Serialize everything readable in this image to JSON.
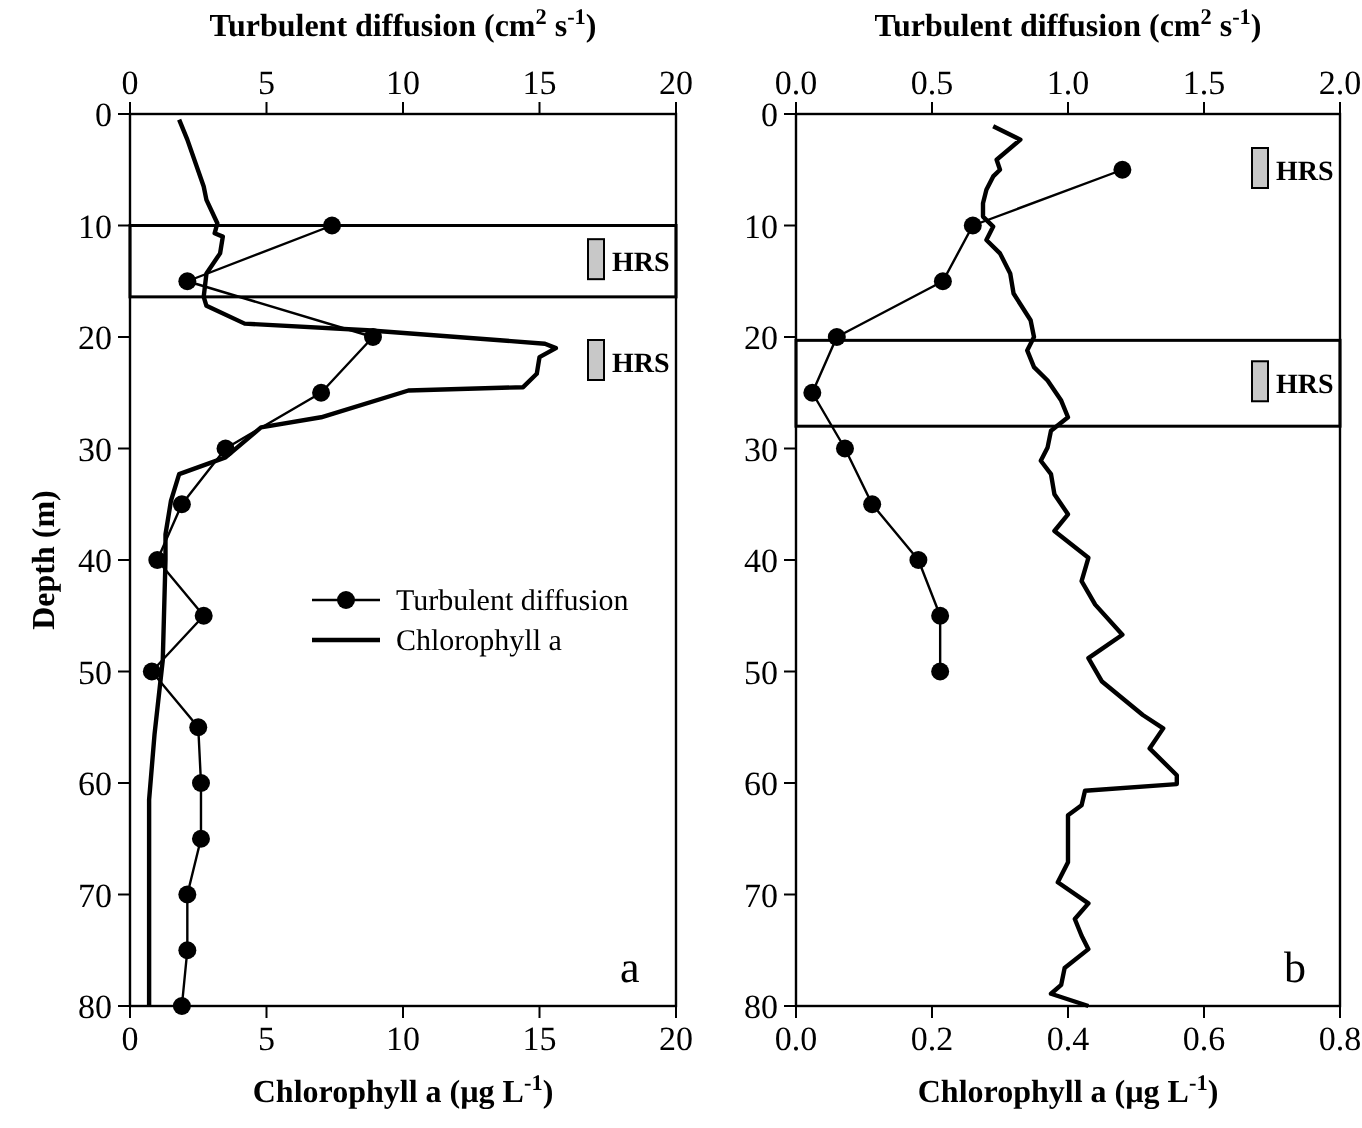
{
  "chart_data": [
    {
      "type": "line",
      "xlabel": "Chlorophyll a (µg L$^{-1}$)",
      "x2label": "Turbulent diffusion (cm$^{2}$ s$^{-1}$)",
      "ylabel": "Depth (m)",
      "xlim": [
        0,
        20
      ],
      "xticks": [
        0,
        5,
        10,
        15,
        20
      ],
      "x2lim": [
        0,
        20
      ],
      "x2ticks": [
        0,
        5,
        10,
        15,
        20
      ],
      "ylim": [
        80,
        0
      ],
      "yticks": [
        0,
        10,
        20,
        30,
        40,
        50,
        60,
        70,
        80
      ],
      "grid": false,
      "legend": "right",
      "series": [
        {
          "name": "Turbulent diffusion",
          "color": "#000000",
          "type": "line",
          "marker": "circle",
          "axis": "x2",
          "x": [
            7.4,
            2.1,
            8.9,
            7.0,
            3.5,
            1.9,
            1.0,
            2.7,
            0.8,
            2.5,
            2.6,
            2.6,
            2.1,
            2.1,
            1.9
          ],
          "values": [
            10,
            15,
            20,
            25,
            30,
            35,
            40,
            45,
            50,
            55,
            60,
            65,
            70,
            75,
            80
          ]
        },
        {
          "name": "Chlorophyll a",
          "color": "#000000",
          "type": "line",
          "marker": "none",
          "x": [
            1.8,
            2.1,
            2.7,
            2.8,
            3.2,
            3.1,
            3.4,
            3.3,
            2.8,
            2.7,
            2.8,
            4.2,
            8.7,
            15.2,
            15.6,
            15.0,
            14.9,
            14.4,
            10.2,
            7.0,
            4.8,
            3.5,
            1.8,
            1.5,
            1.3,
            1.3,
            1.2,
            0.9,
            0.7,
            0.7
          ],
          "values": [
            0.5,
            2.3,
            6.5,
            7.7,
            9.8,
            10.7,
            11,
            12.5,
            14.3,
            16.4,
            17.2,
            18.8,
            19.4,
            20.6,
            21,
            21.8,
            23.3,
            24.5,
            24.8,
            27.2,
            28.1,
            30.8,
            32.3,
            34.7,
            37.7,
            40,
            49,
            55.6,
            61.5,
            80
          ]
        }
      ],
      "bands": [
        {
          "axis": "y",
          "from": 10,
          "to": 16.4,
          "label": "HRS"
        }
      ],
      "annotations": [
        "HRS",
        "a"
      ]
    },
    {
      "type": "line",
      "xlabel": "Chlorophyll a (µg L$^{-1}$)",
      "x2label": "Turbulent diffusion (cm$^{2}$ s$^{-1}$)",
      "xlim": [
        0,
        0.8
      ],
      "xticks": [
        {
          "value": 0,
          "label": "0.0"
        },
        0.2,
        0.4,
        0.6,
        0.8
      ],
      "x2lim": [
        0,
        2
      ],
      "x2ticks": [
        {
          "value": 0,
          "label": "0.0"
        },
        0.5,
        {
          "value": 1,
          "label": "1.0"
        },
        1.5,
        {
          "value": 2,
          "label": "2.0"
        }
      ],
      "ylim": [
        80,
        0
      ],
      "yticks": [
        0,
        10,
        20,
        30,
        40,
        50,
        60,
        70,
        80
      ],
      "grid": false,
      "legend": false,
      "series": [
        {
          "color": "#000000",
          "type": "line",
          "marker": "circle",
          "axis": "x2",
          "x": [
            1.2,
            0.65,
            0.54,
            0.15,
            0.06,
            0.18,
            0.28,
            0.45,
            0.53,
            0.53
          ],
          "values": [
            5,
            10,
            15,
            20,
            25,
            30,
            35,
            40,
            45,
            50
          ]
        },
        {
          "color": "#000000",
          "type": "line",
          "marker": "none",
          "x": [
            0.29,
            0.33,
            0.295,
            0.3,
            0.29,
            0.28,
            0.275,
            0.275,
            0.29,
            0.28,
            0.3,
            0.315,
            0.32,
            0.345,
            0.35,
            0.34,
            0.35,
            0.37,
            0.39,
            0.4,
            0.375,
            0.37,
            0.36,
            0.375,
            0.38,
            0.4,
            0.38,
            0.43,
            0.42,
            0.44,
            0.48,
            0.43,
            0.45,
            0.51,
            0.54,
            0.52,
            0.56,
            0.56,
            0.425,
            0.42,
            0.4,
            0.4,
            0.385,
            0.43,
            0.41,
            0.42,
            0.43,
            0.395,
            0.39,
            0.375,
            0.43
          ],
          "values": [
            1.1,
            2.3,
            4.1,
            5,
            5.6,
            6.8,
            8,
            9.2,
            10.1,
            11.3,
            12.5,
            14.3,
            16.1,
            18.5,
            20,
            21.2,
            22.7,
            23.9,
            25.7,
            27.2,
            28.4,
            29.9,
            31.1,
            32.3,
            34.1,
            35.9,
            37.4,
            39.8,
            41.9,
            44,
            46.7,
            48.8,
            50.9,
            53.9,
            55.1,
            56.9,
            59.3,
            60.1,
            60.7,
            62,
            62.9,
            67.1,
            68.9,
            70.8,
            72.2,
            73.7,
            74.9,
            76.6,
            78.1,
            78.9,
            80
          ]
        }
      ],
      "bands": [
        {
          "axis": "y",
          "from": 20.3,
          "to": 28,
          "label": "HRS"
        }
      ],
      "annotations": [
        "HRS",
        "b"
      ]
    }
  ]
}
